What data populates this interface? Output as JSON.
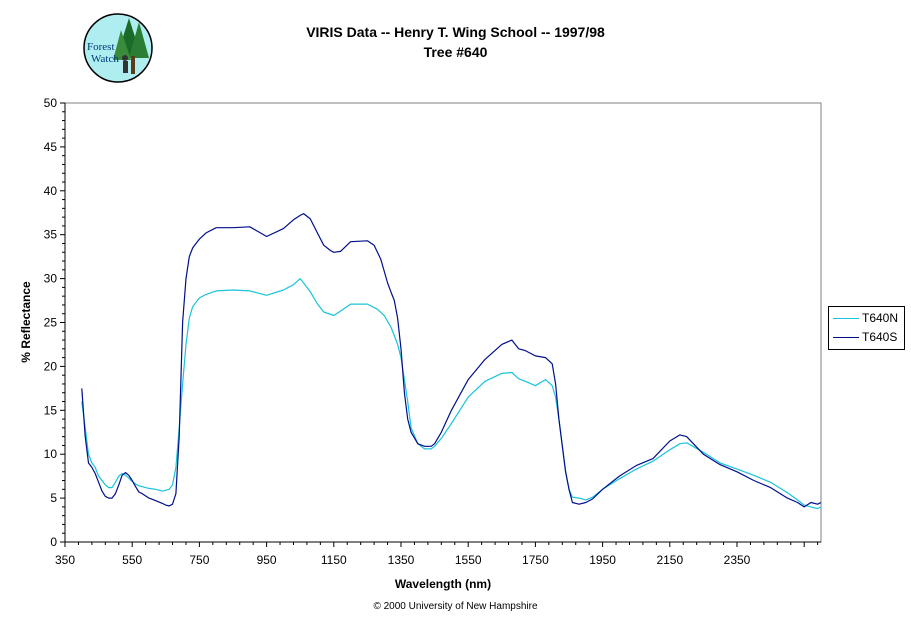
{
  "logo": {
    "text_line1": "Forest",
    "text_line2": "Watch"
  },
  "chart_data": {
    "type": "line",
    "title": "VIRIS Data -- Henry T. Wing School -- 1997/98",
    "subtitle": "Tree #640",
    "xlabel": "Wavelength (nm)",
    "ylabel": "% Reflectance",
    "xlim": [
      350,
      2600
    ],
    "ylim": [
      0,
      50
    ],
    "xticks": [
      "350",
      "550",
      "750",
      "950",
      "1150",
      "1350",
      "1550",
      "1750",
      "1950",
      "2150",
      "2350"
    ],
    "yticks": [
      "0",
      "5",
      "10",
      "15",
      "20",
      "25",
      "30",
      "35",
      "40",
      "45",
      "50"
    ],
    "grid": false,
    "legend_position": "right",
    "series": [
      {
        "name": "T640N",
        "color": "#19c3d9",
        "x": [
          400,
          410,
          420,
          430,
          440,
          450,
          460,
          470,
          480,
          490,
          500,
          510,
          520,
          530,
          540,
          550,
          560,
          570,
          580,
          600,
          620,
          640,
          660,
          670,
          680,
          690,
          700,
          710,
          720,
          730,
          740,
          750,
          770,
          800,
          850,
          900,
          950,
          1000,
          1030,
          1050,
          1060,
          1080,
          1100,
          1120,
          1150,
          1170,
          1200,
          1250,
          1280,
          1300,
          1320,
          1340,
          1350,
          1370,
          1380,
          1400,
          1420,
          1440,
          1450,
          1470,
          1500,
          1550,
          1600,
          1650,
          1680,
          1700,
          1720,
          1750,
          1780,
          1800,
          1810,
          1820,
          1840,
          1850,
          1860,
          1880,
          1900,
          1920,
          1950,
          2000,
          2050,
          2100,
          2150,
          2180,
          2200,
          2250,
          2300,
          2350,
          2400,
          2450,
          2500,
          2530,
          2550,
          2570,
          2590,
          2600
        ],
        "y": [
          16,
          13,
          10,
          9,
          8.5,
          7.5,
          7,
          6.5,
          6.2,
          6.2,
          6.8,
          7.5,
          7.8,
          7.6,
          7.3,
          6.9,
          6.6,
          6.4,
          6.3,
          6.1,
          6.0,
          5.8,
          6.0,
          6.5,
          8.5,
          13,
          18,
          22.5,
          25.5,
          26.8,
          27.3,
          27.8,
          28.2,
          28.6,
          28.7,
          28.6,
          28.1,
          28.7,
          29.3,
          30.0,
          29.5,
          28.5,
          27.2,
          26.2,
          25.8,
          26.3,
          27.1,
          27.1,
          26.5,
          25.8,
          24.5,
          22.5,
          21,
          16,
          13,
          11.2,
          10.6,
          10.6,
          10.9,
          11.8,
          13.5,
          16.5,
          18.3,
          19.2,
          19.3,
          18.6,
          18.3,
          17.8,
          18.5,
          17.8,
          16.5,
          14,
          8,
          6,
          5.1,
          5.0,
          4.8,
          5.1,
          6.0,
          7.2,
          8.3,
          9.2,
          10.5,
          11.2,
          11.3,
          10.2,
          9.0,
          8.3,
          7.6,
          6.8,
          5.6,
          4.8,
          4.2,
          4.0,
          3.8,
          4.0
        ]
      },
      {
        "name": "T640S",
        "color": "#000f8c",
        "x": [
          400,
          410,
          420,
          430,
          440,
          450,
          460,
          470,
          480,
          490,
          500,
          510,
          520,
          530,
          540,
          550,
          560,
          570,
          580,
          600,
          620,
          640,
          650,
          660,
          670,
          680,
          690,
          700,
          710,
          720,
          730,
          740,
          750,
          770,
          800,
          850,
          900,
          950,
          1000,
          1030,
          1050,
          1060,
          1080,
          1100,
          1120,
          1140,
          1150,
          1170,
          1200,
          1250,
          1270,
          1290,
          1310,
          1320,
          1330,
          1340,
          1350,
          1360,
          1370,
          1380,
          1400,
          1420,
          1440,
          1450,
          1470,
          1500,
          1550,
          1600,
          1650,
          1680,
          1700,
          1720,
          1750,
          1780,
          1800,
          1810,
          1820,
          1840,
          1850,
          1860,
          1880,
          1900,
          1920,
          1950,
          2000,
          2050,
          2100,
          2150,
          2180,
          2200,
          2250,
          2300,
          2350,
          2400,
          2450,
          2500,
          2530,
          2550,
          2570,
          2590,
          2600
        ],
        "y": [
          17.5,
          12,
          9,
          8.5,
          7.8,
          6.8,
          5.8,
          5.2,
          5.0,
          5.0,
          5.5,
          6.5,
          7.6,
          7.9,
          7.6,
          7.0,
          6.3,
          5.7,
          5.5,
          5.0,
          4.7,
          4.4,
          4.2,
          4.1,
          4.3,
          5.5,
          12,
          25,
          30,
          32.5,
          33.5,
          34,
          34.5,
          35.2,
          35.8,
          35.8,
          35.9,
          34.8,
          35.7,
          36.7,
          37.2,
          37.4,
          36.8,
          35.3,
          33.8,
          33.2,
          33.0,
          33.1,
          34.2,
          34.3,
          33.8,
          32.2,
          29.5,
          28.5,
          27.5,
          25.5,
          22,
          17,
          14,
          12.5,
          11.2,
          10.9,
          10.9,
          11.2,
          12.5,
          15.0,
          18.5,
          20.8,
          22.5,
          23.0,
          22.0,
          21.8,
          21.2,
          21.0,
          20.3,
          18,
          14,
          8,
          6,
          4.5,
          4.3,
          4.5,
          4.9,
          6.0,
          7.5,
          8.7,
          9.5,
          11.5,
          12.2,
          12.0,
          10.0,
          8.8,
          8.0,
          7.0,
          6.2,
          5.0,
          4.5,
          4.0,
          4.5,
          4.3,
          4.5
        ]
      }
    ]
  },
  "footer": {
    "copyright": "© 2000 University of New Hampshire"
  }
}
